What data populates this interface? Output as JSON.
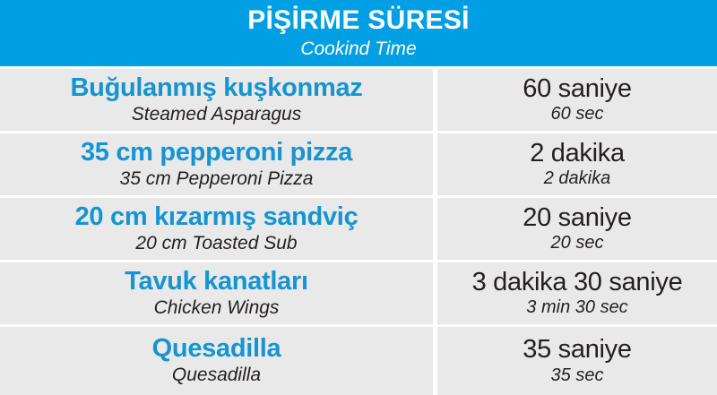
{
  "header": {
    "title": "PİŞİRME SÜRESİ",
    "subtitle": "Cookind Time"
  },
  "colors": {
    "header_bg": "#009fe3",
    "row_bg": "#e9e9e9",
    "item_blue": "#1495d2",
    "text_dark": "#231f20"
  },
  "rows": [
    {
      "name_tr": "Buğulanmış kuşkonmaz",
      "name_en": "Steamed Asparagus",
      "time_tr": "60 saniye",
      "time_en": "60 sec"
    },
    {
      "name_tr": "35 cm pepperoni pizza",
      "name_en": "35 cm Pepperoni Pizza",
      "time_tr": "2 dakika",
      "time_en": "2 dakika"
    },
    {
      "name_tr": "20 cm kızarmış sandviç",
      "name_en": "20 cm Toasted Sub",
      "time_tr": "20 saniye",
      "time_en": "20 sec"
    },
    {
      "name_tr": "Tavuk kanatları",
      "name_en": "Chicken Wings",
      "time_tr": "3 dakika 30 saniye",
      "time_en": "3 min 30 sec"
    },
    {
      "name_tr": "Quesadilla",
      "name_en": "Quesadilla",
      "time_tr": "35 saniye",
      "time_en": "35 sec"
    }
  ],
  "chart_data": {
    "type": "table",
    "title": "PİŞİRME SÜRESİ",
    "subtitle": "Cookind Time",
    "rows": [
      [
        "Buğulanmış kuşkonmaz",
        "Steamed Asparagus",
        "60 saniye",
        "60 sec"
      ],
      [
        "35 cm pepperoni pizza",
        "35 cm Pepperoni Pizza",
        "2 dakika",
        "2 dakika"
      ],
      [
        "20 cm kızarmış sandviç",
        "20 cm Toasted Sub",
        "20 saniye",
        "20 sec"
      ],
      [
        "Tavuk kanatları",
        "Chicken Wings",
        "3 dakika 30 saniye",
        "3 min 30 sec"
      ],
      [
        "Quesadilla",
        "Quesadilla",
        "35 saniye",
        "35 sec"
      ]
    ]
  }
}
